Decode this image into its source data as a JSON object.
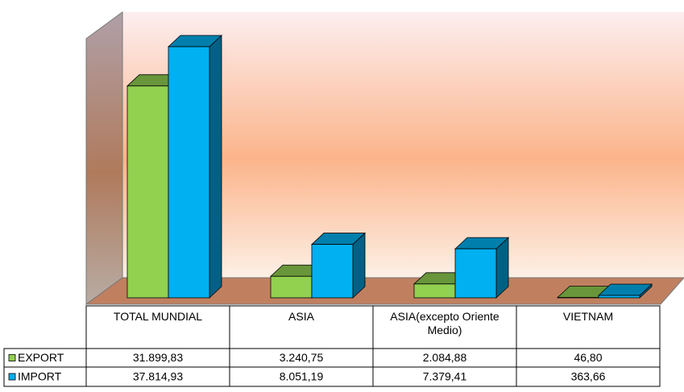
{
  "chart_data": {
    "type": "bar",
    "categories": [
      "TOTAL MUNDIAL",
      "ASIA",
      "ASIA(excepto Oriente Medio)",
      "VIETNAM"
    ],
    "series": [
      {
        "name": "EXPORT",
        "color": "#92d050",
        "values": [
          31899.83,
          3240.75,
          2084.88,
          46.8
        ],
        "value_labels": [
          "31.899,83",
          "3.240,75",
          "2.084,88",
          "46,80"
        ]
      },
      {
        "name": "IMPORT",
        "color": "#00b0f0",
        "values": [
          37814.93,
          8051.19,
          7379.41,
          363.66
        ],
        "value_labels": [
          "37.814,93",
          "8.051,19",
          "7.379,41",
          "363,66"
        ]
      }
    ]
  }
}
